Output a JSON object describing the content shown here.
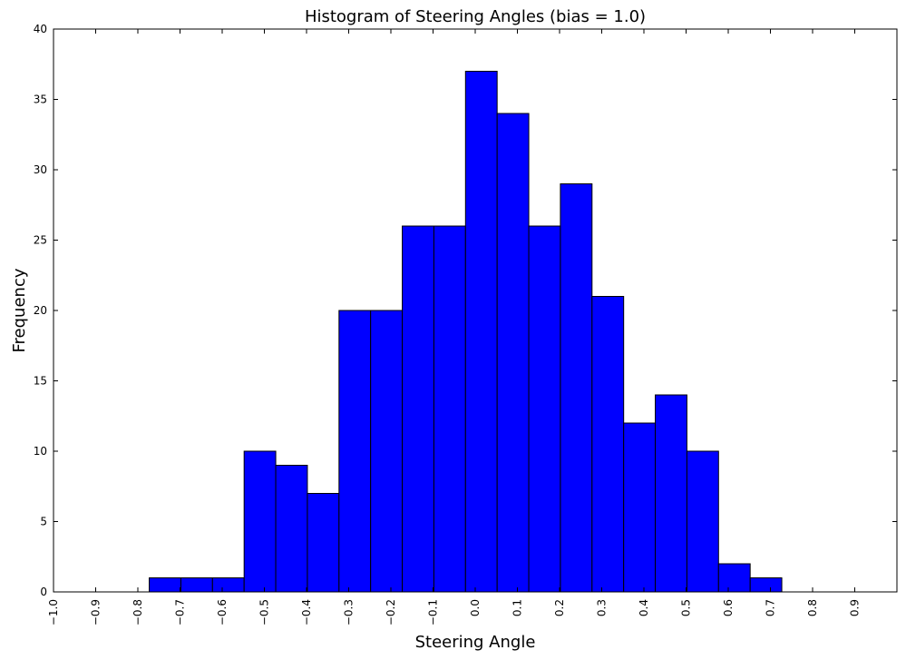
{
  "chart_data": {
    "type": "bar",
    "title": "Histogram of Steering Angles (bias = 1.0)",
    "xlabel": "Steering Angle",
    "ylabel": "Frequency",
    "xlim": [
      -1.0,
      1.0
    ],
    "ylim": [
      0,
      40
    ],
    "bar_color": "#0000ff",
    "edge_color": "#000000",
    "bin_width": 0.075,
    "grid": false,
    "legend": "none",
    "xticks": [
      -1.0,
      -0.9,
      -0.8,
      -0.7,
      -0.6,
      -0.5,
      -0.4,
      -0.3,
      -0.2,
      -0.1,
      0.0,
      0.1,
      0.2,
      0.3,
      0.4,
      0.5,
      0.6,
      0.7,
      0.8,
      0.9
    ],
    "xtick_labels": [
      "−1.0",
      "−0.9",
      "−0.8",
      "−0.7",
      "−0.6",
      "−0.5",
      "−0.4",
      "−0.3",
      "−0.2",
      "−0.1",
      "0.0",
      "0.1",
      "0.2",
      "0.3",
      "0.4",
      "0.5",
      "0.6",
      "0.7",
      "0.8",
      "0.9"
    ],
    "yticks": [
      0,
      5,
      10,
      15,
      20,
      25,
      30,
      35,
      40
    ],
    "ytick_labels": [
      "0",
      "5",
      "10",
      "15",
      "20",
      "25",
      "30",
      "35",
      "40"
    ],
    "bars": [
      {
        "x": -0.773,
        "value": 1
      },
      {
        "x": -0.698,
        "value": 1
      },
      {
        "x": -0.623,
        "value": 1
      },
      {
        "x": -0.548,
        "value": 10
      },
      {
        "x": -0.473,
        "value": 9
      },
      {
        "x": -0.398,
        "value": 7
      },
      {
        "x": -0.323,
        "value": 20
      },
      {
        "x": -0.248,
        "value": 20
      },
      {
        "x": -0.173,
        "value": 26
      },
      {
        "x": -0.098,
        "value": 26
      },
      {
        "x": -0.023,
        "value": 37
      },
      {
        "x": 0.052,
        "value": 34
      },
      {
        "x": 0.127,
        "value": 26
      },
      {
        "x": 0.202,
        "value": 29
      },
      {
        "x": 0.277,
        "value": 21
      },
      {
        "x": 0.352,
        "value": 12
      },
      {
        "x": 0.427,
        "value": 14
      },
      {
        "x": 0.502,
        "value": 10
      },
      {
        "x": 0.577,
        "value": 2
      },
      {
        "x": 0.652,
        "value": 1
      }
    ]
  }
}
